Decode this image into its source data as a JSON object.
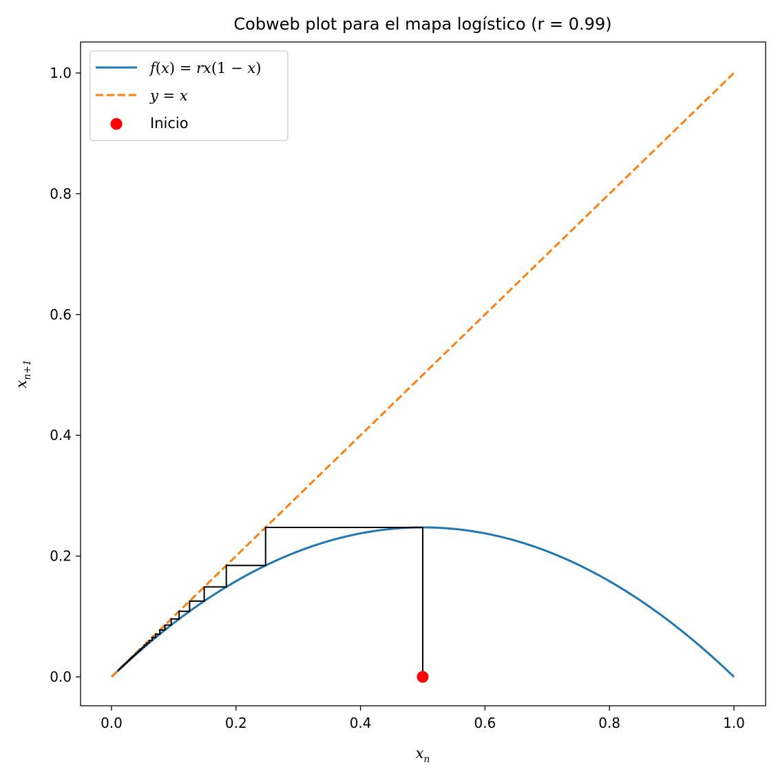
{
  "chart_data": {
    "type": "line",
    "title": "Cobweb plot para el mapa logístico (r = 0.99)",
    "xlabel": "x_n",
    "ylabel": "x_{n+1}",
    "r": 0.99,
    "x0": 0.5,
    "iterations": 60,
    "xlim": [
      -0.05,
      1.05
    ],
    "ylim": [
      -0.05,
      1.05
    ],
    "xticks": [
      "0.0",
      "0.2",
      "0.4",
      "0.6",
      "0.8",
      "1.0"
    ],
    "yticks": [
      "0.0",
      "0.2",
      "0.4",
      "0.6",
      "0.8",
      "1.0"
    ],
    "grid": false,
    "legend_position": "top-left",
    "series": [
      {
        "name": "f(x) = rx(1 − x)",
        "kind": "curve",
        "color": "#1f77b4",
        "style": "solid"
      },
      {
        "name": "y = x",
        "kind": "identity",
        "color": "#ff7f0e",
        "style": "dashed"
      },
      {
        "name": "Inicio",
        "kind": "start-point",
        "color": "#ff0000",
        "point": [
          0.5,
          0
        ]
      }
    ],
    "cobweb_color": "#000000"
  }
}
